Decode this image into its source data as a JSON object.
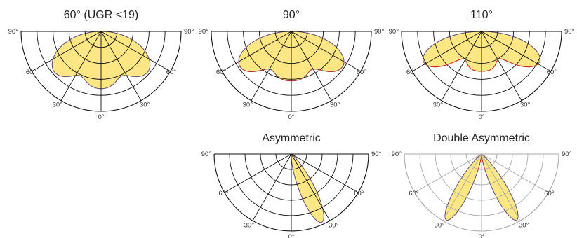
{
  "colors": {
    "fill": "#fde57a",
    "outline": "#5a4a6e",
    "dashed": "#d62a1f",
    "grid": "#111111",
    "grid_light": "#aaaaaa"
  },
  "diagrams": [
    {
      "title": "60° (UGR <19)",
      "angle_labels": {
        "left90": "90°",
        "right90": "90°",
        "left60": "60°",
        "right60": "60°",
        "left30": "30°",
        "right30": "30°",
        "zero": "0°"
      },
      "distribution": "symmetric",
      "beam": {
        "base": 0.72,
        "side": 0.78,
        "sideDeg": 47,
        "dip": 0.12,
        "shoulder": 0.74
      },
      "cutoff_line": "none"
    },
    {
      "title": "90°",
      "angle_labels": {
        "left90": "90°",
        "right90": "90°",
        "left60": "60°",
        "right60": "60°",
        "left30": "30°",
        "right30": "30°",
        "zero": "0°"
      },
      "distribution": "symmetric",
      "beam": {
        "base": 0.62,
        "side": 0.78,
        "sideDeg": 55,
        "dip": 0.1,
        "shoulder": 0.66
      },
      "cutoff_line": "dashed"
    },
    {
      "title": "110°",
      "angle_labels": {
        "left90": "90°",
        "right90": "90°",
        "left60": "60°",
        "right60": "60°",
        "left30": "30°",
        "right30": "30°",
        "zero": "0°"
      },
      "distribution": "symmetric",
      "beam": {
        "base": 0.5,
        "side": 0.82,
        "sideDeg": 62,
        "dip": 0.12,
        "shoulder": 0.58
      },
      "cutoff_line": "outline"
    },
    {
      "title": "Asymmetric",
      "angle_labels": {
        "left90": "90°",
        "right90": "90°",
        "left60": "60°",
        "right60": "60°",
        "left30": "30°",
        "right30": "30°",
        "zero": "0°"
      },
      "distribution": "asymmetric",
      "beam": {
        "peakDeg": 24,
        "peak": 0.97,
        "width": 10
      },
      "cutoff_line": "none"
    },
    {
      "title": "Double Asymmetric",
      "angle_labels": {
        "left90": "90°",
        "right90": "90°",
        "left60": "60°",
        "right60": "60°",
        "left30": "30°",
        "right30": "30°",
        "zero": "0°"
      },
      "distribution": "double-asymmetric",
      "beam": {
        "peakDeg": 28,
        "peak": 0.97,
        "width": 9
      },
      "cutoff_line": "dashed"
    }
  ]
}
